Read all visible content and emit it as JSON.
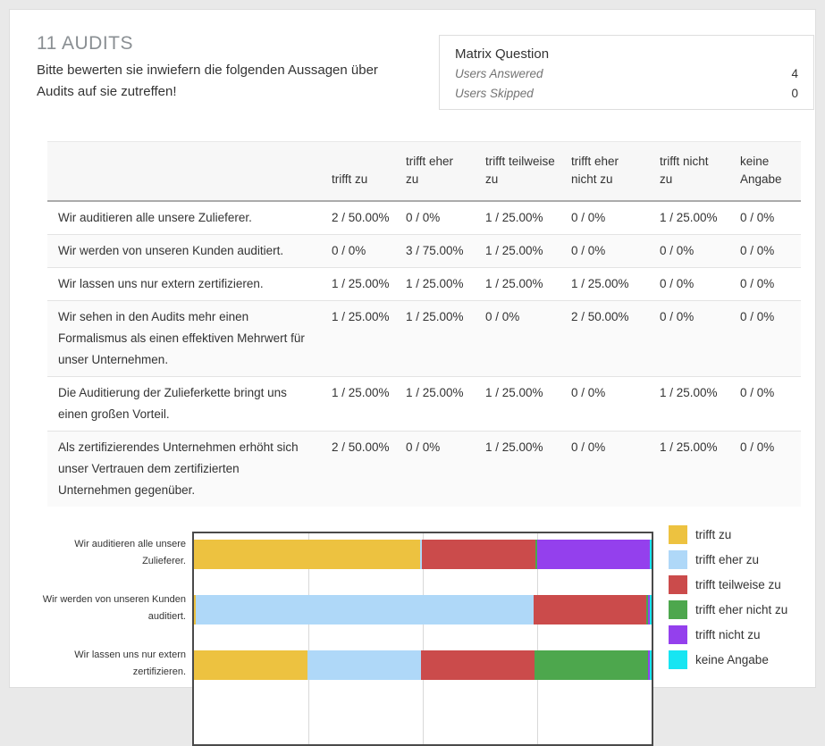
{
  "page": {
    "title": "11 AUDITS",
    "subtitle": "Bitte bewerten sie inwiefern die folgenden Aussagen über Audits auf sie zutreffen!"
  },
  "summary_box": {
    "title": "Matrix Question",
    "rows": [
      {
        "label": "Users Answered",
        "value": "4"
      },
      {
        "label": "Users Skipped",
        "value": "0"
      }
    ]
  },
  "table": {
    "columns": [
      "trifft zu",
      "trifft eher zu",
      "trifft teilweise zu",
      "trifft eher nicht zu",
      "trifft nicht zu",
      "keine Angabe"
    ],
    "rows": [
      {
        "statement": "Wir auditieren alle unsere Zulieferer.",
        "cells": [
          "2 / 50.00%",
          "0 / 0%",
          "1 / 25.00%",
          "0 / 0%",
          "1 / 25.00%",
          "0 / 0%"
        ]
      },
      {
        "statement": "Wir werden von unseren Kunden auditiert.",
        "cells": [
          "0 / 0%",
          "3 / 75.00%",
          "1 / 25.00%",
          "0 / 0%",
          "0 / 0%",
          "0 / 0%"
        ]
      },
      {
        "statement": "Wir lassen uns nur extern zertifizieren.",
        "cells": [
          "1 / 25.00%",
          "1 / 25.00%",
          "1 / 25.00%",
          "1 / 25.00%",
          "0 / 0%",
          "0 / 0%"
        ]
      },
      {
        "statement": "Wir sehen in den Audits mehr einen Formalismus als einen effektiven Mehrwert für unser Unternehmen.",
        "cells": [
          "1 / 25.00%",
          "1 / 25.00%",
          "0 / 0%",
          "2 / 50.00%",
          "0 / 0%",
          "0 / 0%"
        ]
      },
      {
        "statement": "Die Auditierung der Zulieferkette bringt uns einen großen Vorteil.",
        "cells": [
          "1 / 25.00%",
          "1 / 25.00%",
          "1 / 25.00%",
          "0 / 0%",
          "1 / 25.00%",
          "0 / 0%"
        ]
      },
      {
        "statement": "Als zertifizierendes Unternehmen erhöht sich unser Vertrauen dem zertifizierten Unternehmen gegenüber.",
        "cells": [
          "2 / 50.00%",
          "0 / 0%",
          "1 / 25.00%",
          "0 / 0%",
          "1 / 25.00%",
          "0 / 0%"
        ]
      }
    ]
  },
  "chart_data": {
    "type": "bar",
    "orientation": "horizontal",
    "stacked": true,
    "unit": "%",
    "xlim": [
      0,
      100
    ],
    "gridlines_percent": [
      25,
      50,
      75
    ],
    "legend_position": "right",
    "categories": [
      "Wir auditieren alle unsere Zulieferer.",
      "Wir werden von unseren Kunden auditiert.",
      "Wir lassen uns nur extern zertifizieren."
    ],
    "series": [
      {
        "name": "trifft zu",
        "color": "#EDC240",
        "values": [
          50,
          0,
          25
        ]
      },
      {
        "name": "trifft eher zu",
        "color": "#AFD8F8",
        "values": [
          0,
          75,
          25
        ]
      },
      {
        "name": "trifft teilweise zu",
        "color": "#CB4B4B",
        "values": [
          25,
          25,
          25
        ]
      },
      {
        "name": "trifft eher nicht zu",
        "color": "#4DA74D",
        "values": [
          0,
          0,
          25
        ]
      },
      {
        "name": "trifft nicht zu",
        "color": "#9440ED",
        "values": [
          25,
          0,
          0
        ]
      },
      {
        "name": "keine Angabe",
        "color": "#17E5F2",
        "values": [
          0,
          0,
          0
        ]
      }
    ]
  },
  "layout_colors": {
    "page_background": "#e9e9e9",
    "card_background": "#ffffff",
    "table_header_background": "#f7f7f7",
    "plot_border": "#4a4a4a"
  }
}
